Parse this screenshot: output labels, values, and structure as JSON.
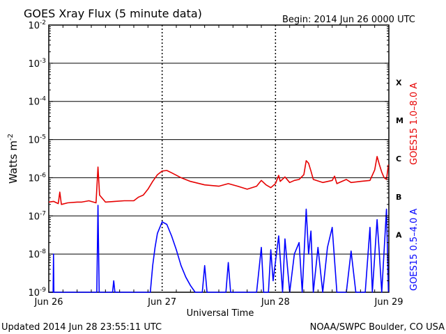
{
  "chart_data": {
    "type": "line",
    "title": "GOES Xray Flux (5 minute data)",
    "begin_label": "Begin:  2014 Jun 26 0000 UTC",
    "xlabel": "Universal Time",
    "ylabel_base": "Watts m",
    "ylabel_exp": "-2",
    "y_scale": "log",
    "ylim": [
      1e-09,
      0.01
    ],
    "xlim": [
      "2014-06-26 00:00",
      "2014-06-29 00:00"
    ],
    "y_ticks": [
      {
        "base": "10",
        "exp": "-9",
        "value": 1e-09
      },
      {
        "base": "10",
        "exp": "-8",
        "value": 1e-08
      },
      {
        "base": "10",
        "exp": "-7",
        "value": 1e-07
      },
      {
        "base": "10",
        "exp": "-6",
        "value": 1e-06
      },
      {
        "base": "10",
        "exp": "-5",
        "value": 1e-05
      },
      {
        "base": "10",
        "exp": "-4",
        "value": 0.0001
      },
      {
        "base": "10",
        "exp": "-3",
        "value": 0.001
      },
      {
        "base": "10",
        "exp": "-2",
        "value": 0.01
      }
    ],
    "x_ticks": [
      {
        "label": "Jun 26",
        "value": "2014-06-26 00:00"
      },
      {
        "label": "Jun 27",
        "value": "2014-06-27 00:00"
      },
      {
        "label": "Jun 28",
        "value": "2014-06-28 00:00"
      },
      {
        "label": "Jun 29",
        "value": "2014-06-29 00:00"
      }
    ],
    "flare_classes": [
      {
        "label": "X",
        "value": 0.0001
      },
      {
        "label": "M",
        "value": 1e-05
      },
      {
        "label": "C",
        "value": 1e-06
      },
      {
        "label": "B",
        "value": 1e-07
      },
      {
        "label": "A",
        "value": 1e-08
      }
    ],
    "series": [
      {
        "name": "GOES15 1.0–8.0 A",
        "color": "#e60000",
        "points": [
          [
            "2014-06-26 00:00",
            2.3e-07
          ],
          [
            "2014-06-26 01:00",
            2.4e-07
          ],
          [
            "2014-06-26 02:00",
            2.1e-07
          ],
          [
            "2014-06-26 02:20",
            4.2e-07
          ],
          [
            "2014-06-26 02:40",
            2e-07
          ],
          [
            "2014-06-26 04:00",
            2.2e-07
          ],
          [
            "2014-06-26 06:00",
            2.3e-07
          ],
          [
            "2014-06-26 07:00",
            2.3e-07
          ],
          [
            "2014-06-26 08:30",
            2.5e-07
          ],
          [
            "2014-06-26 10:00",
            2.2e-07
          ],
          [
            "2014-06-26 10:25",
            1.9e-06
          ],
          [
            "2014-06-26 10:45",
            3.5e-07
          ],
          [
            "2014-06-26 12:00",
            2.3e-07
          ],
          [
            "2014-06-26 14:00",
            2.4e-07
          ],
          [
            "2014-06-26 16:00",
            2.5e-07
          ],
          [
            "2014-06-26 18:00",
            2.5e-07
          ],
          [
            "2014-06-26 19:00",
            3.1e-07
          ],
          [
            "2014-06-26 20:00",
            3.5e-07
          ],
          [
            "2014-06-26 21:00",
            5e-07
          ],
          [
            "2014-06-26 22:00",
            8e-07
          ],
          [
            "2014-06-26 23:00",
            1.2e-06
          ],
          [
            "2014-06-27 00:00",
            1.5e-06
          ],
          [
            "2014-06-27 01:00",
            1.55e-06
          ],
          [
            "2014-06-27 02:00",
            1.35e-06
          ],
          [
            "2014-06-27 04:00",
            1e-06
          ],
          [
            "2014-06-27 06:00",
            8e-07
          ],
          [
            "2014-06-27 09:00",
            6.5e-07
          ],
          [
            "2014-06-27 12:00",
            6e-07
          ],
          [
            "2014-06-27 14:00",
            7e-07
          ],
          [
            "2014-06-27 16:00",
            6e-07
          ],
          [
            "2014-06-27 18:00",
            5e-07
          ],
          [
            "2014-06-27 20:00",
            6e-07
          ],
          [
            "2014-06-27 21:00",
            8.5e-07
          ],
          [
            "2014-06-27 22:00",
            6.5e-07
          ],
          [
            "2014-06-27 23:00",
            5.5e-07
          ],
          [
            "2014-06-28 00:00",
            7e-07
          ],
          [
            "2014-06-28 00:40",
            1.15e-06
          ],
          [
            "2014-06-28 01:00",
            8e-07
          ],
          [
            "2014-06-28 02:00",
            1.05e-06
          ],
          [
            "2014-06-28 03:00",
            7.5e-07
          ],
          [
            "2014-06-28 04:00",
            8.5e-07
          ],
          [
            "2014-06-28 05:00",
            9e-07
          ],
          [
            "2014-06-28 06:00",
            1.2e-06
          ],
          [
            "2014-06-28 06:30",
            2.8e-06
          ],
          [
            "2014-06-28 07:00",
            2.4e-06
          ],
          [
            "2014-06-28 07:30",
            1.5e-06
          ],
          [
            "2014-06-28 08:00",
            9e-07
          ],
          [
            "2014-06-28 10:00",
            7.5e-07
          ],
          [
            "2014-06-28 12:00",
            8.5e-07
          ],
          [
            "2014-06-28 12:30",
            1.1e-06
          ],
          [
            "2014-06-28 13:00",
            7e-07
          ],
          [
            "2014-06-28 15:00",
            9e-07
          ],
          [
            "2014-06-28 16:00",
            7.5e-07
          ],
          [
            "2014-06-28 18:00",
            8e-07
          ],
          [
            "2014-06-28 20:00",
            8.5e-07
          ],
          [
            "2014-06-28 21:00",
            1.6e-06
          ],
          [
            "2014-06-28 21:30",
            3.6e-06
          ],
          [
            "2014-06-28 22:00",
            2.2e-06
          ],
          [
            "2014-06-28 22:30",
            1.4e-06
          ],
          [
            "2014-06-28 23:00",
            1e-06
          ],
          [
            "2014-06-28 23:30",
            9e-07
          ],
          [
            "2014-06-28 23:55",
            2.2e-06
          ]
        ]
      },
      {
        "name": "GOES15 0.5–4.0 A",
        "color": "#0000ff",
        "points": [
          [
            "2014-06-26 00:00",
            1e-09
          ],
          [
            "2014-06-26 00:55",
            1e-09
          ],
          [
            "2014-06-26 01:00",
            1e-08
          ],
          [
            "2014-06-26 01:05",
            1e-09
          ],
          [
            "2014-06-26 10:10",
            1e-09
          ],
          [
            "2014-06-26 10:25",
            1.9e-07
          ],
          [
            "2014-06-26 10:40",
            1e-09
          ],
          [
            "2014-06-26 13:30",
            1e-09
          ],
          [
            "2014-06-26 13:45",
            2e-09
          ],
          [
            "2014-06-26 14:00",
            1e-09
          ],
          [
            "2014-06-26 21:30",
            1e-09
          ],
          [
            "2014-06-26 22:00",
            5e-09
          ],
          [
            "2014-06-26 22:30",
            1.5e-08
          ],
          [
            "2014-06-26 23:00",
            3.5e-08
          ],
          [
            "2014-06-27 00:00",
            7e-08
          ],
          [
            "2014-06-27 01:00",
            6e-08
          ],
          [
            "2014-06-27 02:00",
            3e-08
          ],
          [
            "2014-06-27 03:00",
            1.3e-08
          ],
          [
            "2014-06-27 04:00",
            5e-09
          ],
          [
            "2014-06-27 05:00",
            2.5e-09
          ],
          [
            "2014-06-27 06:00",
            1.5e-09
          ],
          [
            "2014-06-27 07:00",
            1e-09
          ],
          [
            "2014-06-27 08:30",
            1e-09
          ],
          [
            "2014-06-27 09:00",
            5e-09
          ],
          [
            "2014-06-27 09:30",
            1e-09
          ],
          [
            "2014-06-27 13:30",
            1e-09
          ],
          [
            "2014-06-27 14:00",
            6e-09
          ],
          [
            "2014-06-27 14:30",
            1e-09
          ],
          [
            "2014-06-27 20:00",
            1e-09
          ],
          [
            "2014-06-27 21:00",
            1.5e-08
          ],
          [
            "2014-06-27 21:30",
            1e-09
          ],
          [
            "2014-06-27 22:30",
            1e-09
          ],
          [
            "2014-06-27 23:00",
            1.3e-08
          ],
          [
            "2014-06-27 23:30",
            2e-09
          ],
          [
            "2014-06-28 00:40",
            3e-08
          ],
          [
            "2014-06-28 01:30",
            1e-09
          ],
          [
            "2014-06-28 02:00",
            2.5e-08
          ],
          [
            "2014-06-28 03:00",
            1e-09
          ],
          [
            "2014-06-28 04:00",
            1e-08
          ],
          [
            "2014-06-28 05:00",
            2e-08
          ],
          [
            "2014-06-28 05:40",
            1e-09
          ],
          [
            "2014-06-28 06:30",
            1.5e-07
          ],
          [
            "2014-06-28 07:00",
            1e-08
          ],
          [
            "2014-06-28 07:30",
            4e-08
          ],
          [
            "2014-06-28 08:00",
            1e-09
          ],
          [
            "2014-06-28 09:00",
            1.5e-08
          ],
          [
            "2014-06-28 10:00",
            1e-09
          ],
          [
            "2014-06-28 11:00",
            1.5e-08
          ],
          [
            "2014-06-28 12:00",
            5e-08
          ],
          [
            "2014-06-28 13:00",
            1e-09
          ],
          [
            "2014-06-28 15:00",
            1e-09
          ],
          [
            "2014-06-28 16:00",
            1.2e-08
          ],
          [
            "2014-06-28 17:00",
            1e-09
          ],
          [
            "2014-06-28 19:00",
            1e-09
          ],
          [
            "2014-06-28 20:00",
            5e-08
          ],
          [
            "2014-06-28 20:30",
            1e-09
          ],
          [
            "2014-06-28 21:30",
            8e-08
          ],
          [
            "2014-06-28 22:00",
            1e-08
          ],
          [
            "2014-06-28 22:30",
            1e-09
          ],
          [
            "2014-06-28 23:30",
            1.5e-07
          ],
          [
            "2014-06-28 23:55",
            1e-09
          ]
        ]
      }
    ]
  },
  "footer": {
    "updated": "Updated 2014 Jun 28 23:55:11 UTC",
    "credit": "NOAA/SWPC Boulder, CO USA"
  }
}
